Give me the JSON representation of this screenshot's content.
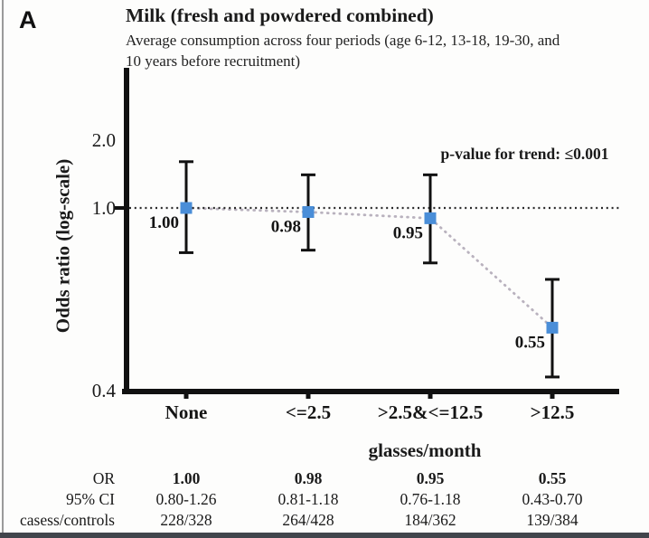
{
  "panel_label": "A",
  "header": {
    "title": "Milk (fresh and powdered combined)",
    "subtitle_line1": "Average consumption across four periods (age 6-12, 13-18, 19-30, and",
    "subtitle_line2": "10 years before recruitment)"
  },
  "chart_data": {
    "type": "scatter",
    "title": "Milk (fresh and powdered combined)",
    "subtitle": "Average consumption across four periods (age 6-12, 13-18, 19-30, and 10 years before recruitment)",
    "categories": [
      "None",
      "<=2.5",
      ">2.5&<=12.5",
      ">12.5"
    ],
    "xlabel": "glasses/month",
    "ylabel": "Odds ratio (log-scale)",
    "y_scale": "log",
    "y_ticks": [
      "2.0",
      "1.0",
      "0.4"
    ],
    "ylim": [
      0.4,
      2.4
    ],
    "reference_line": 1.0,
    "grid": "off",
    "annotation": "p-value for trend: ≤0.001",
    "series": [
      {
        "name": "Odds ratio",
        "values": [
          1.0,
          0.98,
          0.95,
          0.55
        ],
        "ci_low": [
          0.8,
          0.81,
          0.76,
          0.43
        ],
        "ci_high": [
          1.26,
          1.18,
          1.18,
          0.7
        ],
        "point_labels": [
          "1.00",
          "0.98",
          "0.95",
          "0.55"
        ]
      }
    ],
    "marker_color": "#4a8ed8",
    "trend_line_color": "#b9b2be",
    "reference_line_color": "#2b2b2b",
    "axis_color": "#111111"
  },
  "table": {
    "row_labels": [
      "OR",
      "95% CI",
      "casess/controls"
    ],
    "rows": [
      [
        "1.00",
        "0.98",
        "0.95",
        "0.55"
      ],
      [
        "0.80-1.26",
        "0.81-1.18",
        "0.76-1.18",
        "0.43-0.70"
      ],
      [
        "228/328",
        "264/428",
        "184/362",
        "139/384"
      ]
    ]
  }
}
